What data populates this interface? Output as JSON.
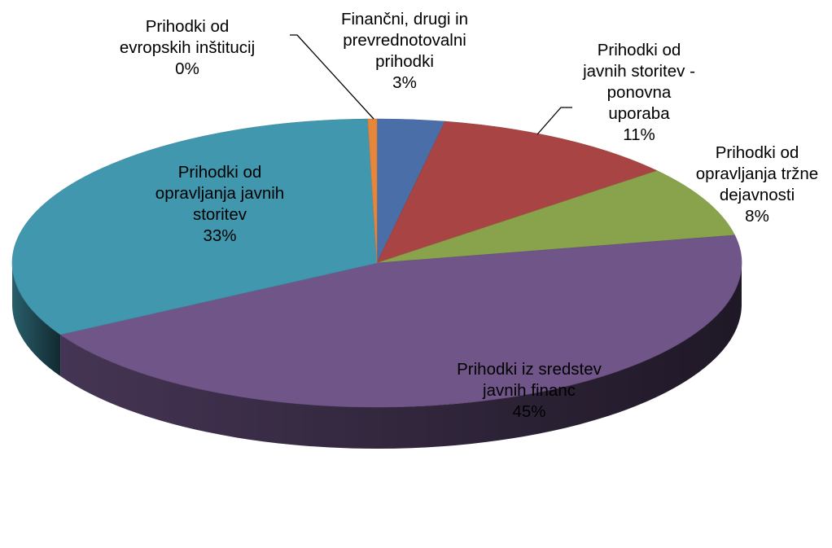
{
  "chart_data": {
    "type": "pie",
    "three_d": true,
    "title": "",
    "slices": [
      {
        "label": [
          "Finančni, drugi in",
          "prevrednotovalni",
          "prihodki"
        ],
        "pct_label": "3%",
        "value": 3,
        "color": "#4a6fa8"
      },
      {
        "label": [
          "Prihodki od",
          "javnih storitev -",
          "ponovna",
          "uporaba"
        ],
        "pct_label": "11%",
        "value": 11,
        "color": "#a84443"
      },
      {
        "label": [
          "Prihodki od",
          "opravljanja tržne",
          "dejavnosti"
        ],
        "pct_label": "8%",
        "value": 8,
        "color": "#88a34c"
      },
      {
        "label": [
          "Prihodki iz sredstev",
          "javnih financ"
        ],
        "pct_label": "45%",
        "value": 45,
        "color": "#705588"
      },
      {
        "label": [
          "Prihodki od",
          "opravljanja javnih",
          "storitev"
        ],
        "pct_label": "33%",
        "value": 33,
        "color": "#4197ad"
      },
      {
        "label": [
          "Prihodki od",
          "evropskih inštitucij"
        ],
        "pct_label": "0%",
        "value": 0.4,
        "color": "#e5863a"
      }
    ]
  }
}
